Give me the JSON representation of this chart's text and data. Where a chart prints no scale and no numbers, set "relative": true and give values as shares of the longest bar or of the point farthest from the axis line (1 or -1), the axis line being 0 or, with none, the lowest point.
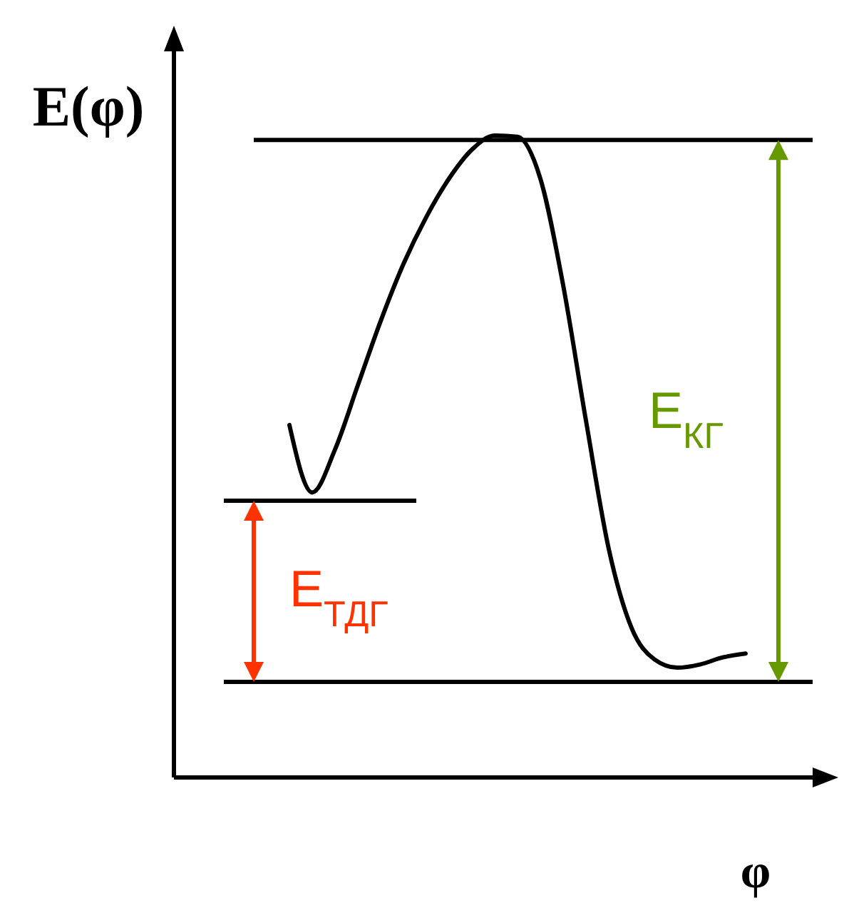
{
  "chart_data": {
    "type": "line",
    "relative": true,
    "xlabel": "φ",
    "ylabel": "E(φ)",
    "categories": [
      null,
      null,
      null,
      null,
      null,
      null,
      null,
      null,
      null,
      null,
      null,
      null,
      null,
      null,
      null,
      null,
      null,
      null,
      null,
      null,
      null
    ],
    "series": [
      {
        "color": "#000000",
        "values": [
          0.549,
          0.444,
          0.511,
          0.611,
          0.711,
          0.8,
          0.873,
          0.933,
          0.978,
          1.0,
          0.998,
          0.933,
          0.767,
          0.556,
          0.356,
          0.233,
          0.184,
          0.171,
          0.176,
          0.187,
          0.193
        ]
      }
    ],
    "ref_lines": [
      {
        "axis": "y",
        "value": 0.993,
        "color": "#000000"
      },
      {
        "axis": "y",
        "value": 0.431,
        "color": "#000000"
      },
      {
        "axis": "y",
        "value": 0.149,
        "color": "#000000"
      }
    ],
    "annotations": [
      "E$_{ТДГ}$",
      "E$_{КГ}$"
    ],
    "line_style": "solid"
  }
}
